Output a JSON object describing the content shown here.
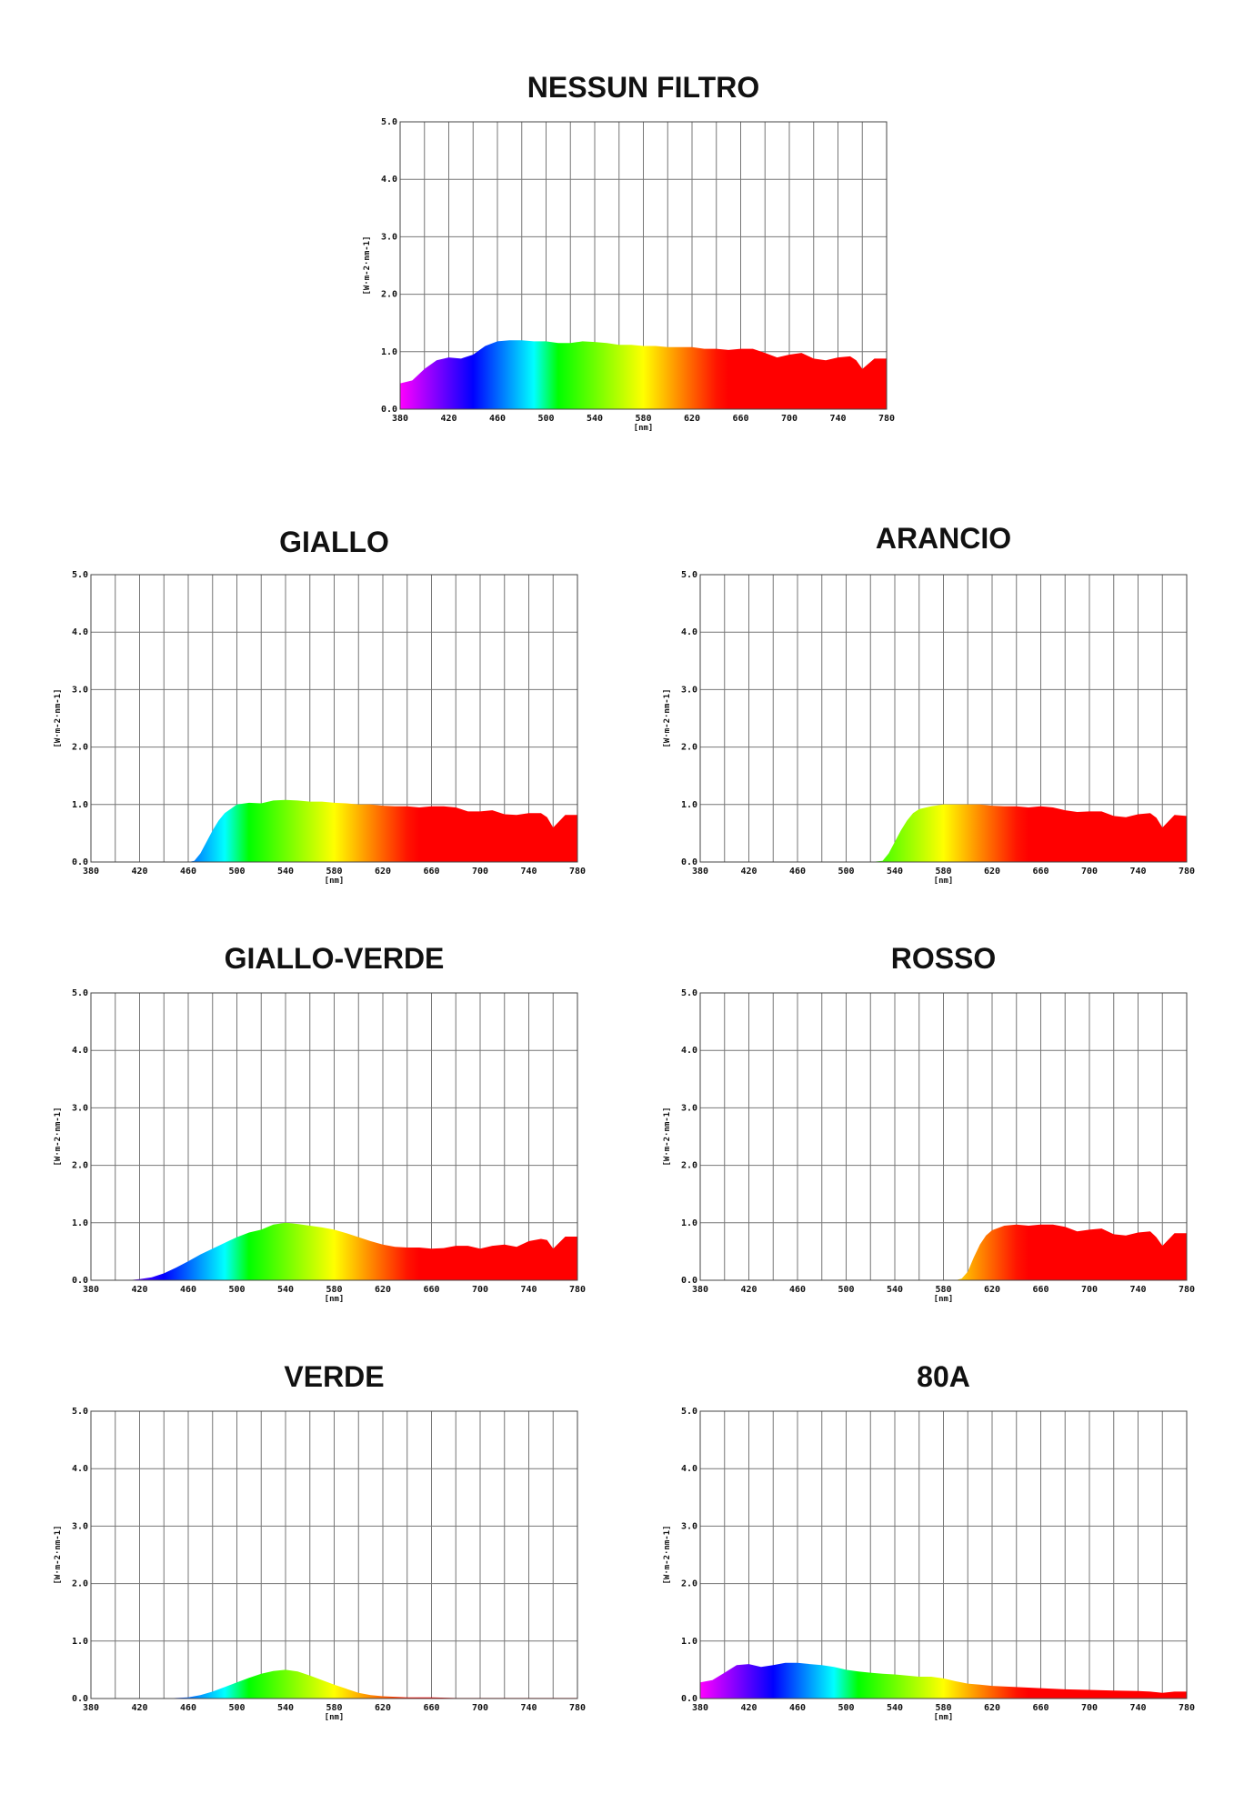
{
  "chart_data": [
    {
      "type": "area",
      "title": "NESSUN FILTRO",
      "xlabel": "[nm]",
      "ylabel": "[W·m-2·nm-1]",
      "xlim": [
        380,
        780
      ],
      "ylim": [
        0,
        5
      ],
      "grid": true,
      "x_ticks": [
        "380",
        "420",
        "460",
        "500",
        "540",
        "580",
        "620",
        "660",
        "700",
        "740",
        "780"
      ],
      "y_ticks": [
        "0.0",
        "1.0",
        "2.0",
        "3.0",
        "4.0",
        "5.0"
      ],
      "x": [
        380,
        390,
        400,
        410,
        420,
        430,
        440,
        450,
        460,
        470,
        480,
        490,
        500,
        510,
        520,
        530,
        540,
        550,
        560,
        570,
        580,
        590,
        600,
        610,
        620,
        630,
        640,
        650,
        660,
        670,
        680,
        690,
        700,
        710,
        720,
        730,
        740,
        750,
        755,
        760,
        770,
        780
      ],
      "y": [
        0.45,
        0.5,
        0.7,
        0.85,
        0.9,
        0.88,
        0.95,
        1.1,
        1.18,
        1.2,
        1.2,
        1.18,
        1.18,
        1.15,
        1.15,
        1.18,
        1.17,
        1.15,
        1.12,
        1.12,
        1.1,
        1.1,
        1.08,
        1.08,
        1.08,
        1.05,
        1.05,
        1.03,
        1.05,
        1.05,
        0.98,
        0.9,
        0.95,
        0.98,
        0.88,
        0.85,
        0.9,
        0.92,
        0.85,
        0.7,
        0.88,
        0.88
      ]
    },
    {
      "type": "area",
      "title": "GIALLO",
      "xlabel": "[nm]",
      "ylabel": "[W·m-2·nm-1]",
      "xlim": [
        380,
        780
      ],
      "ylim": [
        0,
        5
      ],
      "grid": true,
      "x_ticks": [
        "380",
        "420",
        "460",
        "500",
        "540",
        "580",
        "620",
        "660",
        "700",
        "740",
        "780"
      ],
      "y_ticks": [
        "0.0",
        "1.0",
        "2.0",
        "3.0",
        "4.0",
        "5.0"
      ],
      "x": [
        380,
        400,
        420,
        440,
        460,
        465,
        470,
        475,
        480,
        485,
        490,
        500,
        510,
        520,
        530,
        540,
        550,
        560,
        570,
        580,
        590,
        600,
        610,
        620,
        630,
        640,
        650,
        660,
        670,
        680,
        690,
        700,
        710,
        720,
        730,
        740,
        750,
        755,
        760,
        770,
        780
      ],
      "y": [
        0,
        0,
        0,
        0,
        0,
        0.02,
        0.15,
        0.35,
        0.55,
        0.72,
        0.85,
        1.0,
        1.03,
        1.02,
        1.07,
        1.08,
        1.07,
        1.05,
        1.05,
        1.03,
        1.02,
        1.0,
        1.0,
        0.98,
        0.97,
        0.97,
        0.95,
        0.97,
        0.97,
        0.95,
        0.88,
        0.88,
        0.9,
        0.83,
        0.82,
        0.85,
        0.85,
        0.78,
        0.6,
        0.82,
        0.82
      ]
    },
    {
      "type": "area",
      "title": "ARANCIO",
      "xlabel": "[nm]",
      "ylabel": "[W·m-2·nm-1]",
      "xlim": [
        380,
        780
      ],
      "ylim": [
        0,
        5
      ],
      "grid": true,
      "x_ticks": [
        "380",
        "420",
        "460",
        "500",
        "540",
        "580",
        "620",
        "660",
        "700",
        "740",
        "780"
      ],
      "y_ticks": [
        "0.0",
        "1.0",
        "2.0",
        "3.0",
        "4.0",
        "5.0"
      ],
      "x": [
        380,
        400,
        420,
        440,
        460,
        480,
        500,
        520,
        530,
        535,
        540,
        545,
        550,
        555,
        560,
        570,
        580,
        590,
        600,
        610,
        620,
        630,
        640,
        650,
        660,
        670,
        680,
        690,
        700,
        710,
        720,
        730,
        740,
        750,
        755,
        760,
        770,
        780
      ],
      "y": [
        0,
        0,
        0,
        0,
        0,
        0,
        0,
        0,
        0.02,
        0.15,
        0.35,
        0.55,
        0.72,
        0.85,
        0.92,
        0.97,
        1.0,
        1.0,
        1.0,
        1.0,
        0.98,
        0.97,
        0.97,
        0.95,
        0.97,
        0.95,
        0.9,
        0.87,
        0.88,
        0.88,
        0.8,
        0.78,
        0.83,
        0.85,
        0.77,
        0.6,
        0.82,
        0.8
      ]
    },
    {
      "type": "area",
      "title": "GIALLO-VERDE",
      "xlabel": "[nm]",
      "ylabel": "[W·m-2·nm-1]",
      "xlim": [
        380,
        780
      ],
      "ylim": [
        0,
        5
      ],
      "grid": true,
      "x_ticks": [
        "380",
        "420",
        "460",
        "500",
        "540",
        "580",
        "620",
        "660",
        "700",
        "740",
        "780"
      ],
      "y_ticks": [
        "0.0",
        "1.0",
        "2.0",
        "3.0",
        "4.0",
        "5.0"
      ],
      "x": [
        380,
        400,
        410,
        420,
        430,
        440,
        450,
        460,
        470,
        480,
        490,
        500,
        510,
        520,
        530,
        540,
        550,
        560,
        570,
        580,
        590,
        600,
        610,
        620,
        630,
        640,
        650,
        660,
        670,
        680,
        690,
        700,
        710,
        720,
        730,
        740,
        750,
        755,
        760,
        770,
        780
      ],
      "y": [
        0,
        0,
        0,
        0.02,
        0.05,
        0.12,
        0.22,
        0.33,
        0.45,
        0.55,
        0.65,
        0.75,
        0.83,
        0.88,
        0.97,
        1.0,
        0.98,
        0.95,
        0.92,
        0.88,
        0.82,
        0.75,
        0.68,
        0.62,
        0.58,
        0.57,
        0.57,
        0.55,
        0.56,
        0.6,
        0.6,
        0.55,
        0.6,
        0.62,
        0.58,
        0.68,
        0.72,
        0.7,
        0.55,
        0.76,
        0.76
      ]
    },
    {
      "type": "area",
      "title": "ROSSO",
      "xlabel": "[nm]",
      "ylabel": "[W·m-2·nm-1]",
      "xlim": [
        380,
        780
      ],
      "ylim": [
        0,
        5
      ],
      "grid": true,
      "x_ticks": [
        "380",
        "420",
        "460",
        "500",
        "540",
        "580",
        "620",
        "660",
        "700",
        "740",
        "780"
      ],
      "y_ticks": [
        "0.0",
        "1.0",
        "2.0",
        "3.0",
        "4.0",
        "5.0"
      ],
      "x": [
        380,
        400,
        420,
        440,
        460,
        480,
        500,
        520,
        540,
        560,
        580,
        590,
        595,
        600,
        605,
        610,
        615,
        620,
        630,
        640,
        650,
        660,
        670,
        680,
        690,
        700,
        710,
        720,
        730,
        740,
        750,
        755,
        760,
        770,
        780
      ],
      "y": [
        0,
        0,
        0,
        0,
        0,
        0,
        0,
        0,
        0,
        0,
        0,
        0,
        0.03,
        0.15,
        0.4,
        0.62,
        0.78,
        0.87,
        0.95,
        0.97,
        0.95,
        0.97,
        0.97,
        0.93,
        0.85,
        0.88,
        0.9,
        0.8,
        0.78,
        0.83,
        0.85,
        0.75,
        0.6,
        0.82,
        0.82
      ]
    },
    {
      "type": "area",
      "title": "VERDE",
      "xlabel": "[nm]",
      "ylabel": "[W·m-2·nm-1]",
      "xlim": [
        380,
        780
      ],
      "ylim": [
        0,
        5
      ],
      "grid": true,
      "x_ticks": [
        "380",
        "420",
        "460",
        "500",
        "540",
        "580",
        "620",
        "660",
        "700",
        "740",
        "780"
      ],
      "y_ticks": [
        "0.0",
        "1.0",
        "2.0",
        "3.0",
        "4.0",
        "5.0"
      ],
      "x": [
        380,
        400,
        420,
        440,
        460,
        470,
        480,
        490,
        500,
        510,
        520,
        530,
        540,
        550,
        560,
        570,
        580,
        590,
        600,
        610,
        620,
        640,
        660,
        680,
        700,
        720,
        740,
        760,
        780
      ],
      "y": [
        0,
        0,
        0,
        0,
        0.02,
        0.06,
        0.12,
        0.2,
        0.28,
        0.36,
        0.43,
        0.48,
        0.5,
        0.47,
        0.4,
        0.32,
        0.24,
        0.17,
        0.1,
        0.06,
        0.04,
        0.02,
        0.02,
        0.01,
        0.01,
        0.01,
        0.01,
        0.01,
        0.01
      ]
    },
    {
      "type": "area",
      "title": "80A",
      "xlabel": "[nm]",
      "ylabel": "[W·m-2·nm-1]",
      "xlim": [
        380,
        780
      ],
      "ylim": [
        0,
        5
      ],
      "grid": true,
      "x_ticks": [
        "380",
        "420",
        "460",
        "500",
        "540",
        "580",
        "620",
        "660",
        "700",
        "740",
        "780"
      ],
      "y_ticks": [
        "0.0",
        "1.0",
        "2.0",
        "3.0",
        "4.0",
        "5.0"
      ],
      "x": [
        380,
        390,
        400,
        410,
        420,
        430,
        440,
        450,
        460,
        470,
        480,
        490,
        500,
        510,
        520,
        530,
        540,
        550,
        560,
        570,
        580,
        590,
        600,
        610,
        620,
        640,
        660,
        680,
        700,
        720,
        740,
        750,
        760,
        770,
        780
      ],
      "y": [
        0.28,
        0.32,
        0.45,
        0.58,
        0.6,
        0.55,
        0.58,
        0.62,
        0.62,
        0.6,
        0.58,
        0.55,
        0.5,
        0.47,
        0.45,
        0.43,
        0.42,
        0.4,
        0.38,
        0.38,
        0.35,
        0.3,
        0.26,
        0.24,
        0.22,
        0.2,
        0.18,
        0.16,
        0.15,
        0.14,
        0.13,
        0.12,
        0.1,
        0.12,
        0.12
      ]
    }
  ]
}
